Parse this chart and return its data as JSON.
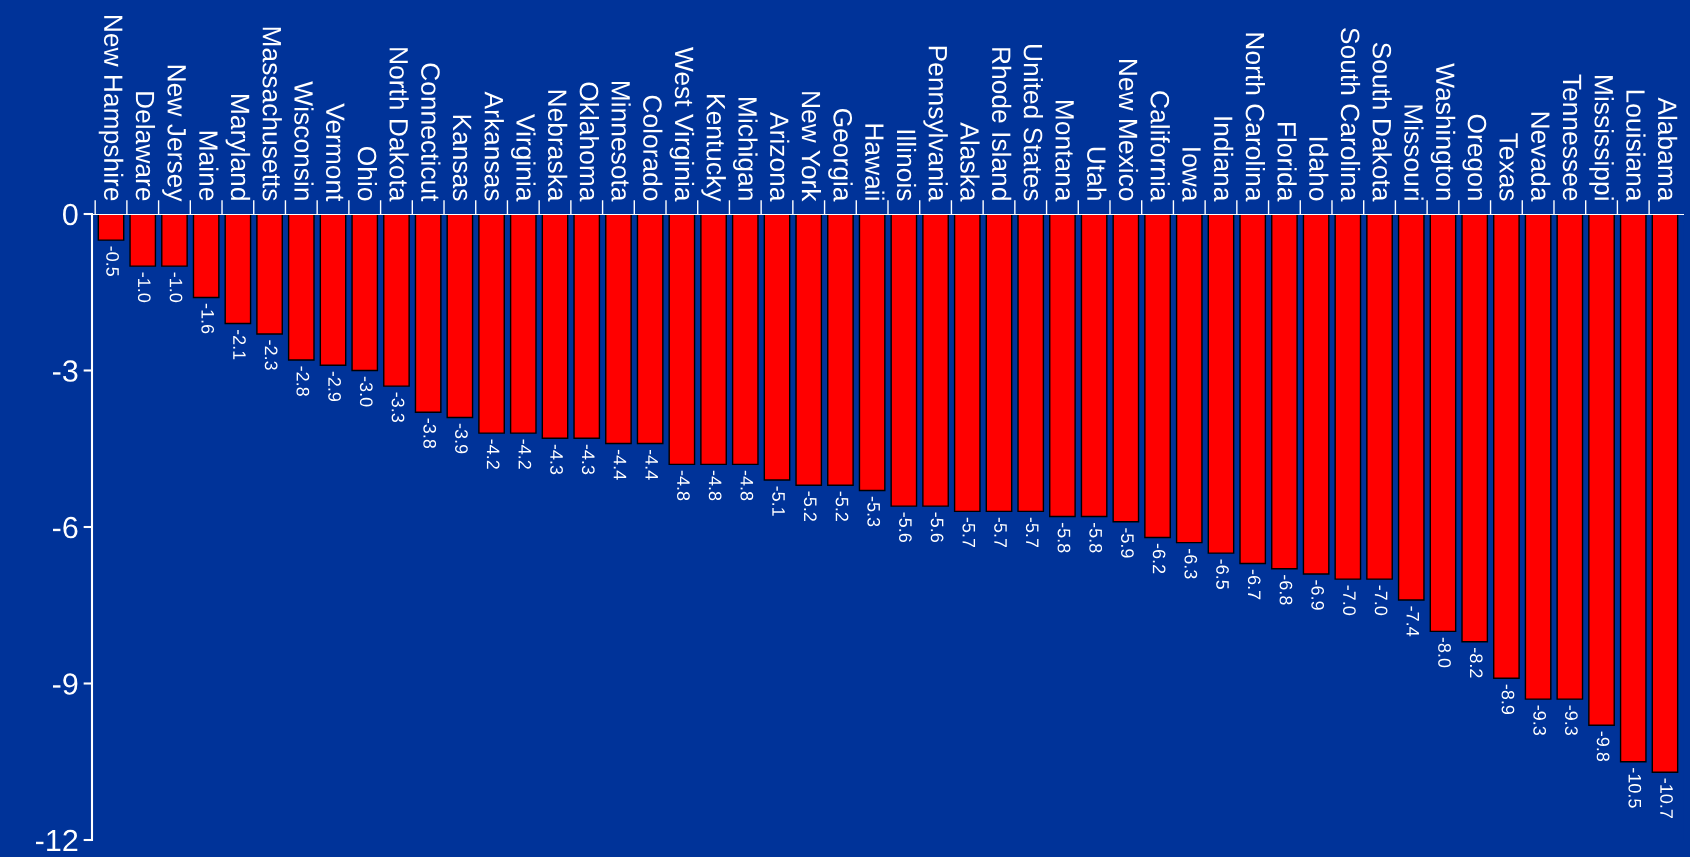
{
  "chart_data": {
    "type": "bar",
    "categories": [
      "New Hampshire",
      "Delaware",
      "New Jersey",
      "Maine",
      "Maryland",
      "Massachusetts",
      "Wisconsin",
      "Vermont",
      "Ohio",
      "North Dakota",
      "Connecticut",
      "Kansas",
      "Arkansas",
      "Virginia",
      "Nebraska",
      "Oklahoma",
      "Minnesota",
      "Colorado",
      "West Virginia",
      "Kentucky",
      "Michigan",
      "Arizona",
      "New York",
      "Georgia",
      "Hawaii",
      "Illinois",
      "Pennsylvania",
      "Alaska",
      "Rhode Island",
      "United States",
      "Montana",
      "Utah",
      "New Mexico",
      "California",
      "Iowa",
      "Indiana",
      "North Carolina",
      "Florida",
      "Idaho",
      "South Carolina",
      "South Dakota",
      "Missouri",
      "Washington",
      "Oregon",
      "Texas",
      "Nevada",
      "Tennessee",
      "Mississippi",
      "Louisiana",
      "Alabama"
    ],
    "values": [
      -0.5,
      -1.0,
      -1.0,
      -1.6,
      -2.1,
      -2.3,
      -2.8,
      -2.9,
      -3.0,
      -3.3,
      -3.8,
      -3.9,
      -4.2,
      -4.2,
      -4.3,
      -4.3,
      -4.4,
      -4.4,
      -4.8,
      -4.8,
      -4.8,
      -5.1,
      -5.2,
      -5.2,
      -5.3,
      -5.6,
      -5.6,
      -5.7,
      -5.7,
      -5.7,
      -5.8,
      -5.8,
      -5.9,
      -6.2,
      -6.3,
      -6.5,
      -6.7,
      -6.8,
      -6.9,
      -7.0,
      -7.0,
      -7.4,
      -8.0,
      -8.2,
      -8.9,
      -9.3,
      -9.3,
      -9.8,
      -10.5,
      -10.7
    ],
    "value_labels": [
      "-0.5",
      "-1.0",
      "-1.0",
      "-1.6",
      "-2.1",
      "-2.3",
      "-2.8",
      "-2.9",
      "-3.0",
      "-3.3",
      "-3.8",
      "-3.9",
      "-4.2",
      "-4.2",
      "-4.3",
      "-4.3",
      "-4.4",
      "-4.4",
      "-4.8",
      "-4.8",
      "-4.8",
      "-5.1",
      "-5.2",
      "-5.2",
      "-5.3",
      "-5.6",
      "-5.6",
      "-5.7",
      "-5.7",
      "-5.7",
      "-5.8",
      "-5.8",
      "-5.9",
      "-6.2",
      "-6.3",
      "-6.5",
      "-6.7",
      "-6.8",
      "-6.9",
      "-7.0",
      "-7.0",
      "-7.4",
      "-8.0",
      "-8.2",
      "-8.9",
      "-9.3",
      "-9.3",
      "-9.8",
      "-10.5",
      "-10.7"
    ],
    "color": "#ff0000",
    "ylim": [
      -12,
      0
    ],
    "yticks": [
      0,
      -3,
      -6,
      -9,
      -12
    ],
    "grid": false,
    "legend": false
  }
}
